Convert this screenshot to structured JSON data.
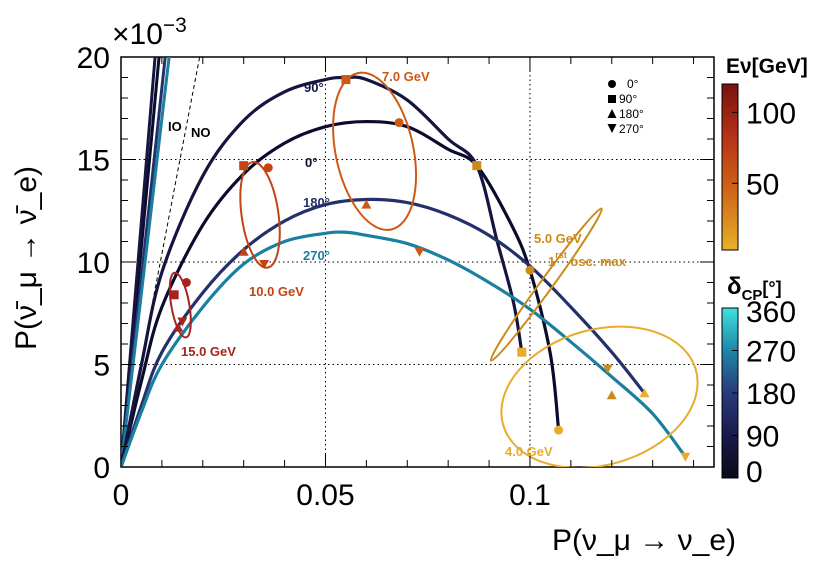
{
  "chart_data": {
    "type": "line",
    "title": "",
    "xlabel": "P(ν_μ → ν_e)",
    "ylabel": "P(ν̄_μ → ν̄_e)",
    "y_multiplier_label": "×10",
    "y_multiplier_exp": "−3",
    "xlim": [
      0,
      0.145
    ],
    "ylim": [
      0,
      20
    ],
    "x_ticks": [
      {
        "v": 0,
        "label": "0"
      },
      {
        "v": 0.05,
        "label": "0.05"
      },
      {
        "v": 0.1,
        "label": "0.1"
      }
    ],
    "y_ticks": [
      {
        "v": 0,
        "label": "0"
      },
      {
        "v": 5,
        "label": "5"
      },
      {
        "v": 10,
        "label": "10"
      },
      {
        "v": 15,
        "label": "15"
      },
      {
        "v": 20,
        "label": "20"
      }
    ],
    "grid": true,
    "delta_cp_curves": [
      {
        "name": "0°",
        "color": "#0b0b2e",
        "points": [
          [
            0,
            0
          ],
          [
            0.005,
            4.2
          ],
          [
            0.01,
            7.8
          ],
          [
            0.02,
            11.8
          ],
          [
            0.03,
            14.3
          ],
          [
            0.04,
            15.8
          ],
          [
            0.05,
            16.6
          ],
          [
            0.06,
            16.85
          ],
          [
            0.07,
            16.6
          ],
          [
            0.08,
            15.5
          ],
          [
            0.087,
            14.7
          ],
          [
            0.095,
            12.0
          ],
          [
            0.1,
            9.6
          ],
          [
            0.105,
            5.5
          ],
          [
            0.107,
            1.8
          ]
        ]
      },
      {
        "name": "90°",
        "color": "#15153f",
        "points": [
          [
            0,
            0
          ],
          [
            0.005,
            5.0
          ],
          [
            0.01,
            9.5
          ],
          [
            0.02,
            14.2
          ],
          [
            0.03,
            16.9
          ],
          [
            0.04,
            18.3
          ],
          [
            0.05,
            18.9
          ],
          [
            0.055,
            19.0
          ],
          [
            0.06,
            18.9
          ],
          [
            0.07,
            17.9
          ],
          [
            0.08,
            16.0
          ],
          [
            0.087,
            14.7
          ],
          [
            0.092,
            11.0
          ],
          [
            0.096,
            8.0
          ],
          [
            0.098,
            5.6
          ]
        ]
      },
      {
        "name": "180°",
        "color": "#24306a",
        "points": [
          [
            0,
            0
          ],
          [
            0.005,
            3.0
          ],
          [
            0.01,
            5.6
          ],
          [
            0.02,
            8.5
          ],
          [
            0.03,
            10.6
          ],
          [
            0.04,
            12.0
          ],
          [
            0.05,
            12.8
          ],
          [
            0.06,
            13.05
          ],
          [
            0.07,
            12.9
          ],
          [
            0.08,
            12.3
          ],
          [
            0.09,
            11.3
          ],
          [
            0.1,
            9.8
          ],
          [
            0.11,
            7.8
          ],
          [
            0.12,
            5.6
          ],
          [
            0.128,
            3.6
          ]
        ]
      },
      {
        "name": "270°",
        "color": "#1a7fa0",
        "points": [
          [
            0,
            0
          ],
          [
            0.005,
            2.7
          ],
          [
            0.01,
            5.0
          ],
          [
            0.02,
            7.8
          ],
          [
            0.03,
            9.9
          ],
          [
            0.04,
            11.0
          ],
          [
            0.05,
            11.4
          ],
          [
            0.055,
            11.45
          ],
          [
            0.06,
            11.3
          ],
          [
            0.07,
            10.9
          ],
          [
            0.08,
            10.1
          ],
          [
            0.09,
            9.0
          ],
          [
            0.1,
            7.7
          ],
          [
            0.11,
            6.1
          ],
          [
            0.12,
            4.4
          ],
          [
            0.13,
            2.6
          ],
          [
            0.138,
            0.5
          ]
        ]
      }
    ],
    "energy_ellipses": [
      {
        "label": "4.0 GeV",
        "energy_gev": 4.0,
        "color": "#e8ac2a",
        "cx": 0.117,
        "cy": 3.4,
        "rx": 0.0245,
        "ry": 3.3,
        "rot_deg": -16,
        "markers": {
          "0": [
            0.107,
            1.8
          ],
          "90": [
            0.098,
            5.6
          ],
          "180": [
            0.128,
            3.6
          ],
          "270": [
            0.138,
            0.5
          ]
        }
      },
      {
        "label": "5.0 GeV",
        "energy_gev": 5.0,
        "color": "#cc8a18",
        "cx": 0.104,
        "cy": 8.9,
        "rx": 0.023,
        "ry": 0.3,
        "rot_deg": -54,
        "markers": {
          "0": [
            0.1,
            9.6
          ],
          "90": [
            0.087,
            14.7
          ],
          "180": [
            0.12,
            3.5
          ],
          "270": [
            0.119,
            4.8
          ]
        }
      },
      {
        "label": "7.0 GeV",
        "energy_gev": 7.0,
        "color": "#cd5a14",
        "cx": 0.062,
        "cy": 15.4,
        "rx": 0.0095,
        "ry": 3.9,
        "rot_deg": -12,
        "markers": {
          "0": [
            0.068,
            16.8
          ],
          "90": [
            0.055,
            18.9
          ],
          "180": [
            0.06,
            12.8
          ],
          "270": [
            0.073,
            10.5
          ]
        }
      },
      {
        "label": "10.0 GeV",
        "energy_gev": 10.0,
        "color": "#c24414",
        "cx": 0.034,
        "cy": 12.3,
        "rx": 0.0045,
        "ry": 2.6,
        "rot_deg": -8,
        "markers": {
          "0": [
            0.036,
            14.6
          ],
          "90": [
            0.03,
            14.7
          ],
          "180": [
            0.03,
            10.5
          ],
          "270": [
            0.035,
            9.9
          ]
        }
      },
      {
        "label": "15.0 GeV",
        "energy_gev": 15.0,
        "color": "#a8231c",
        "cx": 0.0145,
        "cy": 7.9,
        "rx": 0.0022,
        "ry": 1.6,
        "rot_deg": -10,
        "markers": {
          "0": [
            0.016,
            9.0
          ],
          "90": [
            0.013,
            8.4
          ],
          "180": [
            0.014,
            6.8
          ],
          "270": [
            0.015,
            7.1
          ]
        }
      }
    ],
    "annotations": {
      "osc_max_label": "1",
      "osc_max_sup": "rst",
      "osc_max_rest": " osc. max",
      "io_label": "IO",
      "no_label": "NO"
    },
    "legend": {
      "position": "top-right",
      "entries": [
        {
          "marker": "circle",
          "label": "0°"
        },
        {
          "marker": "square",
          "label": "90°"
        },
        {
          "marker": "triangle-up",
          "label": "180°"
        },
        {
          "marker": "triangle-down",
          "label": "270°"
        }
      ]
    },
    "colorbars": [
      {
        "title": "Eν[GeV]",
        "ticks": [
          "100",
          "50"
        ],
        "range": [
          3,
          120
        ],
        "colors": [
          "#e8b12a",
          "#d06a18",
          "#b83418",
          "#7a1010"
        ]
      },
      {
        "title": "δ",
        "title_sub": "CP",
        "title_rest": "[°]",
        "ticks": [
          "360",
          "270",
          "180",
          "90",
          "0"
        ],
        "range": [
          0,
          360
        ],
        "colors": [
          "#0a0a1a",
          "#1a1a4a",
          "#283a7a",
          "#1f86a8",
          "#3fe0e0"
        ]
      }
    ]
  }
}
